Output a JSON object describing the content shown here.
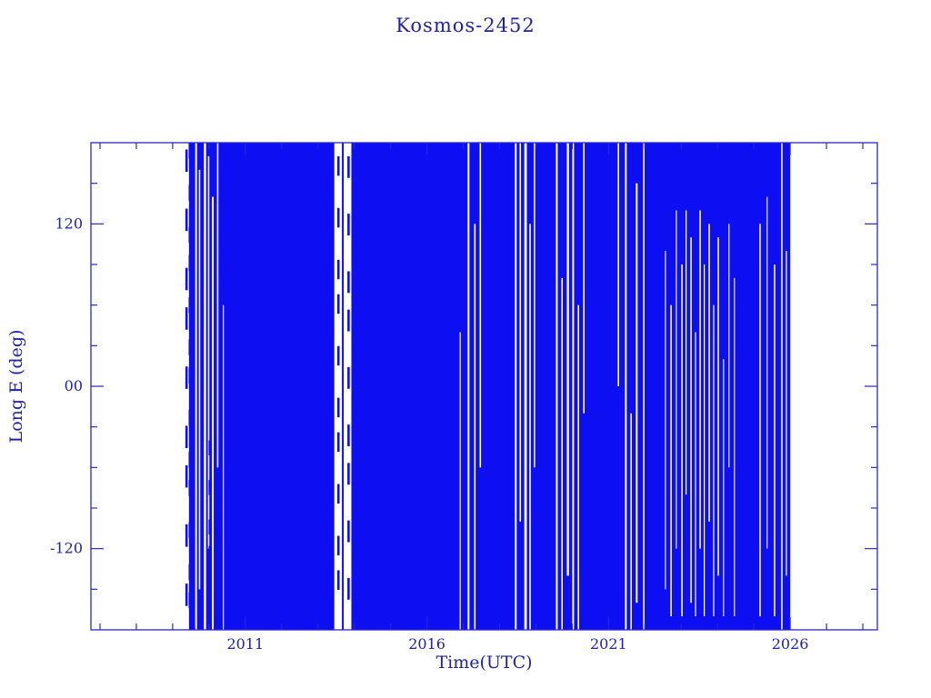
{
  "figure": {
    "background": "#ffffff"
  },
  "chart_data": {
    "type": "scatter",
    "title": "Kosmos-2452",
    "xlabel": "Time(UTC)",
    "ylabel": "Long E (deg)",
    "xlim": [
      2006.75,
      2028.4
    ],
    "ylim": [
      -180,
      180
    ],
    "grid": false,
    "legend": false,
    "x_major_ticks": [
      {
        "v": 2011,
        "label": "2011"
      },
      {
        "v": 2016,
        "label": "2016"
      },
      {
        "v": 2021,
        "label": "2021"
      },
      {
        "v": 2026,
        "label": "2026"
      }
    ],
    "x_minor_step": 1,
    "y_major_ticks": [
      {
        "v": -120,
        "label": "-120"
      },
      {
        "v": 0,
        "label": "00"
      },
      {
        "v": 120,
        "label": "120"
      }
    ],
    "y_minor_step": 30,
    "colors": {
      "data_fill": "#0e0ef2",
      "frame": "#2a2ac0",
      "text": "#22229e",
      "background": "#ffffff"
    },
    "coverage": {
      "start": 2009.45,
      "end": 2026.0,
      "y_min": -180,
      "y_max": 180
    },
    "gaps": [
      {
        "x": 2009.62,
        "w": 0.05,
        "y0": -180,
        "y1": 180
      },
      {
        "x": 2009.72,
        "w": 0.04,
        "y0": -150,
        "y1": 160
      },
      {
        "x": 2009.86,
        "w": 0.06,
        "y0": -180,
        "y1": 180
      },
      {
        "x": 2009.97,
        "w": 0.04,
        "y0": -120,
        "y1": 170
      },
      {
        "x": 2010.08,
        "w": 0.05,
        "y0": -180,
        "y1": 140
      },
      {
        "x": 2010.22,
        "w": 0.04,
        "y0": -60,
        "y1": 180
      },
      {
        "x": 2010.38,
        "w": 0.03,
        "y0": -180,
        "y1": 60
      },
      {
        "x": 2013.45,
        "w": 0.21,
        "y0": -180,
        "y1": 180
      },
      {
        "x": 2013.71,
        "w": 0.21,
        "y0": -180,
        "y1": 180
      },
      {
        "x": 2016.9,
        "w": 0.03,
        "y0": -180,
        "y1": 40
      },
      {
        "x": 2017.12,
        "w": 0.05,
        "y0": -180,
        "y1": 180
      },
      {
        "x": 2017.3,
        "w": 0.04,
        "y0": -180,
        "y1": 120
      },
      {
        "x": 2017.45,
        "w": 0.04,
        "y0": -60,
        "y1": 180
      },
      {
        "x": 2018.42,
        "w": 0.05,
        "y0": -180,
        "y1": 180
      },
      {
        "x": 2018.55,
        "w": 0.04,
        "y0": -100,
        "y1": 180
      },
      {
        "x": 2018.68,
        "w": 0.07,
        "y0": -180,
        "y1": 180
      },
      {
        "x": 2018.82,
        "w": 0.04,
        "y0": -180,
        "y1": 120
      },
      {
        "x": 2018.94,
        "w": 0.04,
        "y0": -60,
        "y1": 180
      },
      {
        "x": 2019.55,
        "w": 0.05,
        "y0": -180,
        "y1": 180
      },
      {
        "x": 2019.7,
        "w": 0.04,
        "y0": -180,
        "y1": 80
      },
      {
        "x": 2019.85,
        "w": 0.06,
        "y0": -140,
        "y1": 180
      },
      {
        "x": 2020.0,
        "w": 0.05,
        "y0": -180,
        "y1": 180
      },
      {
        "x": 2020.15,
        "w": 0.04,
        "y0": -180,
        "y1": 60
      },
      {
        "x": 2020.3,
        "w": 0.04,
        "y0": -20,
        "y1": 180
      },
      {
        "x": 2021.25,
        "w": 0.04,
        "y0": 0,
        "y1": 180
      },
      {
        "x": 2021.45,
        "w": 0.05,
        "y0": -180,
        "y1": 180
      },
      {
        "x": 2021.6,
        "w": 0.04,
        "y0": -180,
        "y1": -20
      },
      {
        "x": 2021.75,
        "w": 0.05,
        "y0": -160,
        "y1": 150
      },
      {
        "x": 2021.95,
        "w": 0.04,
        "y0": -180,
        "y1": 180
      },
      {
        "x": 2022.55,
        "w": 0.03,
        "y0": -150,
        "y1": 100
      },
      {
        "x": 2022.7,
        "w": 0.04,
        "y0": -170,
        "y1": 60
      },
      {
        "x": 2022.85,
        "w": 0.03,
        "y0": -120,
        "y1": 130
      },
      {
        "x": 2023.0,
        "w": 0.04,
        "y0": -170,
        "y1": 90
      },
      {
        "x": 2023.12,
        "w": 0.03,
        "y0": -80,
        "y1": 130
      },
      {
        "x": 2023.25,
        "w": 0.04,
        "y0": -160,
        "y1": 110
      },
      {
        "x": 2023.38,
        "w": 0.03,
        "y0": -170,
        "y1": 40
      },
      {
        "x": 2023.5,
        "w": 0.04,
        "y0": -120,
        "y1": 130
      },
      {
        "x": 2023.62,
        "w": 0.03,
        "y0": -170,
        "y1": 90
      },
      {
        "x": 2023.75,
        "w": 0.04,
        "y0": -100,
        "y1": 120
      },
      {
        "x": 2023.88,
        "w": 0.03,
        "y0": -170,
        "y1": 60
      },
      {
        "x": 2024.0,
        "w": 0.04,
        "y0": -140,
        "y1": 110
      },
      {
        "x": 2024.15,
        "w": 0.03,
        "y0": -170,
        "y1": 20
      },
      {
        "x": 2024.3,
        "w": 0.03,
        "y0": -60,
        "y1": 120
      },
      {
        "x": 2024.45,
        "w": 0.03,
        "y0": -170,
        "y1": 80
      },
      {
        "x": 2025.15,
        "w": 0.04,
        "y0": -170,
        "y1": 120
      },
      {
        "x": 2025.35,
        "w": 0.03,
        "y0": -120,
        "y1": 140
      },
      {
        "x": 2025.55,
        "w": 0.04,
        "y0": -170,
        "y1": 90
      },
      {
        "x": 2025.75,
        "w": 0.04,
        "y0": -180,
        "y1": 180
      },
      {
        "x": 2025.88,
        "w": 0.03,
        "y0": -140,
        "y1": 100
      }
    ],
    "dotted_columns": [
      {
        "x": 2009.38,
        "y0": -175,
        "y1": 175,
        "segments": 9
      },
      {
        "x": 2009.47,
        "y0": -180,
        "y1": 180,
        "segments": 13
      },
      {
        "x": 2010.02,
        "y0": -170,
        "y1": -40,
        "segments": 5
      },
      {
        "x": 2010.3,
        "y0": 40,
        "y1": 170,
        "segments": 5
      },
      {
        "x": 2013.56,
        "y0": -170,
        "y1": 170,
        "segments": 10
      },
      {
        "x": 2013.84,
        "y0": -170,
        "y1": 170,
        "segments": 9
      }
    ]
  }
}
